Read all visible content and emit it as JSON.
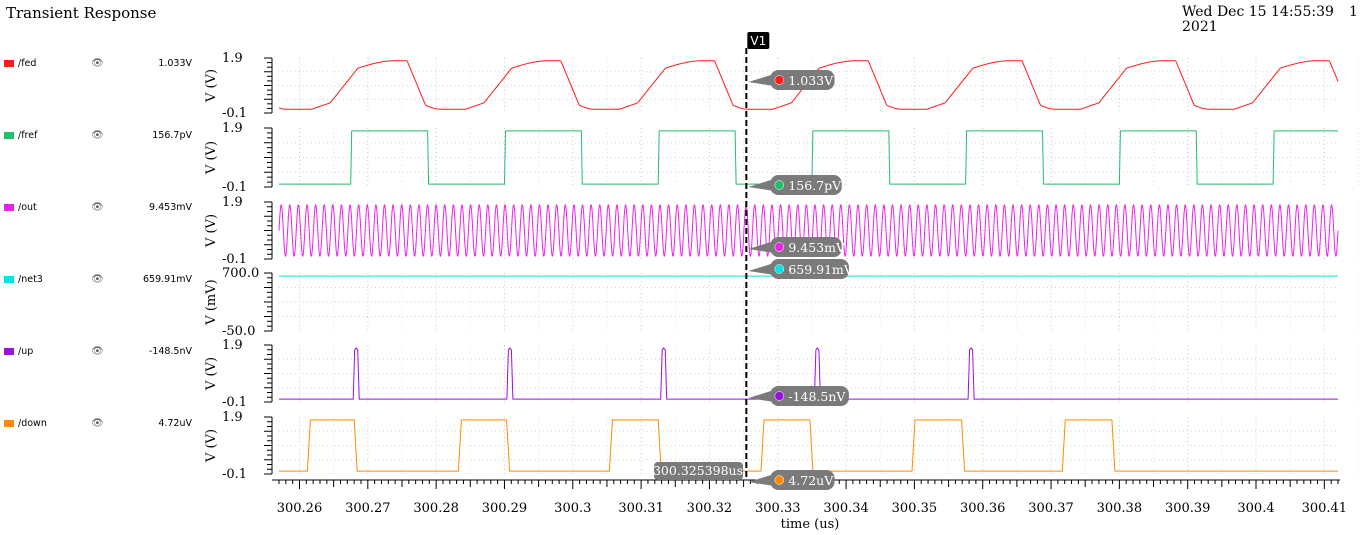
{
  "header": {
    "title": "Transient Response",
    "date": "Wed Dec 15 14:55:39",
    "year": "2021",
    "page": "1"
  },
  "marker": {
    "label": "V1",
    "time": 300.3254,
    "time_label": "300.325398us"
  },
  "chart_data": {
    "type": "line",
    "xlabel": "time (us)",
    "xlim": [
      300.257,
      300.412
    ],
    "xticks": [
      "300.26",
      "300.27",
      "300.28",
      "300.29",
      "300.3",
      "300.31",
      "300.32",
      "300.33",
      "300.34",
      "300.35",
      "300.36",
      "300.37",
      "300.38",
      "300.39",
      "300.4",
      "300.41"
    ],
    "grid": true,
    "series": [
      {
        "name": "/fed",
        "color": "#ff1a1a",
        "value": "1.033V",
        "ylabel": "V (V)",
        "ylim": [
          -0.1,
          1.9
        ],
        "ytick_top": "1.9",
        "ytick_bottom": "-0.1",
        "waveform": "ramp",
        "period": 0.0225,
        "low": 0.0,
        "high": 1.8,
        "phase": 300.2645
      },
      {
        "name": "/fref",
        "color": "#1fbf6b",
        "value": "156.7pV",
        "ylabel": "V (V)",
        "ylim": [
          -0.1,
          1.9
        ],
        "ytick_top": "1.9",
        "ytick_bottom": "-0.1",
        "waveform": "square",
        "period": 0.0225,
        "duty": 0.5,
        "low": 0.0,
        "high": 1.8,
        "rising": [
          300.2675,
          300.29,
          300.3125,
          300.335,
          300.3575,
          300.38,
          300.4025
        ]
      },
      {
        "name": "/out",
        "color": "#ee22ee",
        "value": "9.453mV",
        "ylabel": "V (V)",
        "ylim": [
          -0.1,
          1.9
        ],
        "ytick_top": "1.9",
        "ytick_bottom": "-0.1",
        "waveform": "sine",
        "cycles": 123,
        "low": 0.0,
        "high": 1.8
      },
      {
        "name": "/net3",
        "color": "#00e5e5",
        "value": "659.91mV",
        "ylabel": "V (mV)",
        "ylim": [
          -50.0,
          700.0
        ],
        "ytick_top": "700.0",
        "ytick_bottom": "-50.0",
        "waveform": "dc",
        "level": 659.91
      },
      {
        "name": "/up",
        "color": "#9a10e0",
        "value": "-148.5nV",
        "ylabel": "V (V)",
        "ylim": [
          -0.1,
          1.9
        ],
        "ytick_top": "1.9",
        "ytick_bottom": "-0.1",
        "waveform": "pulse",
        "low": 0.0,
        "high": 1.8,
        "pulses": [
          300.2683,
          300.2908,
          300.3133,
          300.3358,
          300.3583
        ]
      },
      {
        "name": "/down",
        "color": "#ff8a00",
        "value": "4.72uV",
        "ylabel": "V (V)",
        "ylim": [
          -0.1,
          1.9
        ],
        "ytick_top": "1.9",
        "ytick_bottom": "-0.1",
        "waveform": "square",
        "low": 0.0,
        "high": 1.8,
        "intervals": [
          [
            300.2613,
            300.2683
          ],
          [
            300.2834,
            300.2906
          ],
          [
            300.3055,
            300.3128
          ],
          [
            300.3277,
            300.335
          ],
          [
            300.3498,
            300.3572
          ],
          [
            300.3718,
            300.3792
          ]
        ]
      }
    ]
  }
}
